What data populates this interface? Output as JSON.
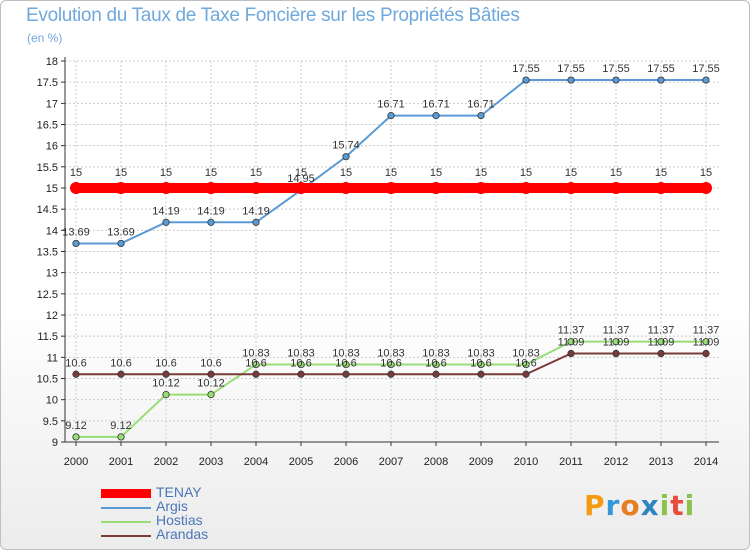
{
  "header": {
    "title": "Evolution du Taux de Taxe Foncière sur les Propriétés Bâties",
    "unit": "(en %)"
  },
  "chart_data": {
    "type": "line",
    "title": "Evolution du Taux de Taxe Foncière sur les Propriétés Bâties",
    "ylabel": "(en %)",
    "xlabel": "",
    "ylim": [
      9,
      18
    ],
    "yticks": [
      "9",
      "9.5",
      "10",
      "10.5",
      "11",
      "11.5",
      "12",
      "12.5",
      "13",
      "13.5",
      "14",
      "14.5",
      "15",
      "15.5",
      "16",
      "16.5",
      "17",
      "17.5",
      "18"
    ],
    "categories": [
      "2000",
      "2001",
      "2002",
      "2003",
      "2004",
      "2005",
      "2006",
      "2007",
      "2008",
      "2009",
      "2010",
      "2011",
      "2012",
      "2013",
      "2014"
    ],
    "grid": true,
    "series": [
      {
        "name": "TENAY",
        "color": "#ff0000",
        "values": [
          15,
          15,
          15,
          15,
          15,
          15,
          15,
          15,
          15,
          15,
          15,
          15,
          15,
          15,
          15
        ],
        "labels": [
          "15",
          "15",
          "15",
          "15",
          "15",
          "15",
          "15",
          "15",
          "15",
          "15",
          "15",
          "15",
          "15",
          "15",
          "15"
        ]
      },
      {
        "name": "Argis",
        "color": "#5b9bd5",
        "values": [
          13.69,
          13.69,
          14.19,
          14.19,
          14.19,
          14.95,
          15.74,
          16.71,
          16.71,
          16.71,
          17.55,
          17.55,
          17.55,
          17.55,
          17.55
        ],
        "labels": [
          "13.69",
          "13.69",
          "14.19",
          "14.19",
          "14.19",
          "14.95",
          "15.74",
          "16.71",
          "16.71",
          "16.71",
          "17.55",
          "17.55",
          "17.55",
          "17.55",
          "17.55"
        ]
      },
      {
        "name": "Hostias",
        "color": "#99dd77",
        "values": [
          9.12,
          9.12,
          10.12,
          10.12,
          10.83,
          10.83,
          10.83,
          10.83,
          10.83,
          10.83,
          10.83,
          11.37,
          11.37,
          11.37,
          11.37
        ],
        "labels": [
          "9.12",
          "9.12",
          "10.12",
          "10.12",
          "10.83",
          "10.83",
          "10.83",
          "10.83",
          "10.83",
          "10.83",
          "10.83",
          "11.37",
          "11.37",
          "11.37",
          "11.37"
        ]
      },
      {
        "name": "Arandas",
        "color": "#7a3b3b",
        "values": [
          10.6,
          10.6,
          10.6,
          10.6,
          10.6,
          10.6,
          10.6,
          10.6,
          10.6,
          10.6,
          10.6,
          11.09,
          11.09,
          11.09,
          11.09
        ],
        "labels": [
          "10.6",
          "10.6",
          "10.6",
          "10.6",
          "10.6",
          "10.6",
          "10.6",
          "10.6",
          "10.6",
          "10.6",
          "10.6",
          "11.09",
          "11.09",
          "11.09",
          "11.09"
        ]
      }
    ],
    "legend": "bottom-left"
  },
  "logo": {
    "text": "Proxiti",
    "letters": [
      "P",
      "r",
      "o",
      "x",
      "i",
      "t",
      "i"
    ],
    "colors": [
      "#f39c12",
      "#3498db",
      "#e67e22",
      "#2e86c1",
      "#8bc34a",
      "#e74c3c",
      "#8bc34a"
    ]
  }
}
